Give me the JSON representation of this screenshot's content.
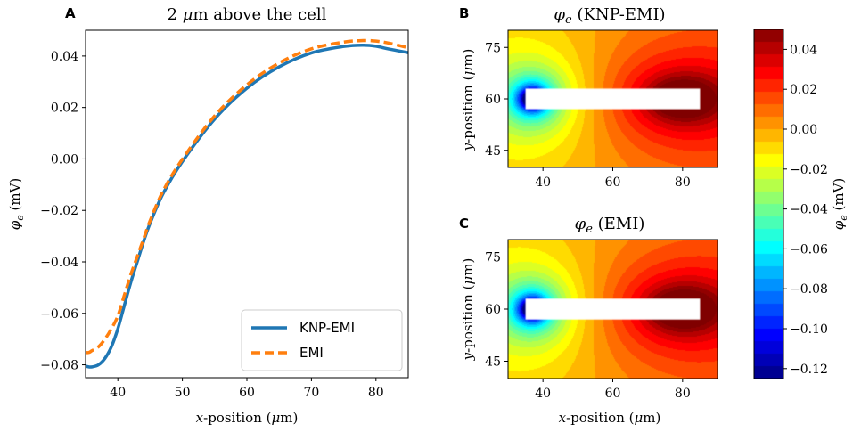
{
  "chart_data": [
    {
      "panel_label": "A",
      "type": "line",
      "title": "2 μm above the cell",
      "xlabel": "x-position (μm)",
      "ylabel": "φe (mV)",
      "xlim": [
        35,
        85
      ],
      "ylim": [
        -0.085,
        0.05
      ],
      "xticks": [
        40,
        50,
        60,
        70,
        80
      ],
      "xtick_labels": [
        "40",
        "50",
        "60",
        "70",
        "80"
      ],
      "yticks": [
        0.04,
        0.02,
        0.0,
        -0.02,
        -0.04,
        -0.06,
        -0.08
      ],
      "ytick_labels": [
        "0.04",
        "0.02",
        "0.00",
        "−0.02",
        "−0.04",
        "−0.06",
        "−0.08"
      ],
      "legend_position": "lower-right",
      "series": [
        {
          "name": "KNP-EMI",
          "color": "#1f77b4",
          "style": "solid",
          "x": [
            35,
            35.5,
            36,
            37,
            38,
            39,
            40,
            41,
            42,
            43,
            44,
            45,
            47,
            50,
            55,
            60,
            65,
            70,
            75,
            78,
            80,
            82,
            85
          ],
          "y": [
            -0.0805,
            -0.0808,
            -0.0808,
            -0.08,
            -0.0775,
            -0.073,
            -0.066,
            -0.057,
            -0.048,
            -0.04,
            -0.032,
            -0.025,
            -0.0135,
            -0.001,
            0.0155,
            0.0275,
            0.0358,
            0.0412,
            0.0437,
            0.0442,
            0.0438,
            0.0427,
            0.0413
          ]
        },
        {
          "name": "EMI",
          "color": "#ff7f0e",
          "style": "dashed",
          "x": [
            35,
            35.5,
            36,
            37,
            38,
            39,
            40,
            41,
            42,
            43,
            44,
            45,
            47,
            50,
            55,
            60,
            65,
            70,
            75,
            78,
            80,
            82,
            85
          ],
          "y": [
            -0.0752,
            -0.0752,
            -0.0745,
            -0.073,
            -0.07,
            -0.066,
            -0.061,
            -0.053,
            -0.045,
            -0.038,
            -0.031,
            -0.024,
            -0.0125,
            -0.0001,
            0.0167,
            0.0288,
            0.0373,
            0.0428,
            0.0454,
            0.046,
            0.0458,
            0.045,
            0.0432
          ]
        }
      ]
    },
    {
      "panel_label": "B",
      "type": "heatmap",
      "title": "φe (KNP-EMI)",
      "ylabel": "y-position (μm)",
      "xlim": [
        30,
        90
      ],
      "ylim": [
        40,
        80
      ],
      "xticks": [
        40,
        60,
        80
      ],
      "xtick_labels": [
        "40",
        "60",
        "80"
      ],
      "yticks": [
        75,
        60,
        45
      ],
      "ytick_labels": [
        "75",
        "60",
        "45"
      ],
      "cell_rect_x": [
        35,
        85
      ],
      "cell_rect_y": [
        57,
        63
      ],
      "field_sources": {
        "negative": [
          37,
          60
        ],
        "positive": [
          80,
          60
        ]
      }
    },
    {
      "panel_label": "C",
      "type": "heatmap",
      "title": "φe (EMI)",
      "xlabel": "x-position (μm)",
      "ylabel": "y-position (μm)",
      "xlim": [
        30,
        90
      ],
      "ylim": [
        40,
        80
      ],
      "xticks": [
        40,
        60,
        80
      ],
      "xtick_labels": [
        "40",
        "60",
        "80"
      ],
      "yticks": [
        75,
        60,
        45
      ],
      "ytick_labels": [
        "75",
        "60",
        "45"
      ],
      "cell_rect_x": [
        35,
        85
      ],
      "cell_rect_y": [
        57,
        63
      ],
      "field_sources": {
        "negative": [
          37,
          60
        ],
        "positive": [
          80,
          60
        ]
      }
    },
    {
      "type": "colorbar",
      "label": "φe (mV)",
      "vmin": -0.125,
      "vmax": 0.05,
      "colormap": "jet",
      "ticks": [
        0.04,
        0.02,
        0.0,
        -0.02,
        -0.04,
        -0.06,
        -0.08,
        -0.1,
        -0.12
      ],
      "tick_labels": [
        "0.04",
        "0.02",
        "0.00",
        "−0.02",
        "−0.04",
        "−0.06",
        "−0.08",
        "−0.10",
        "−0.12"
      ]
    }
  ]
}
